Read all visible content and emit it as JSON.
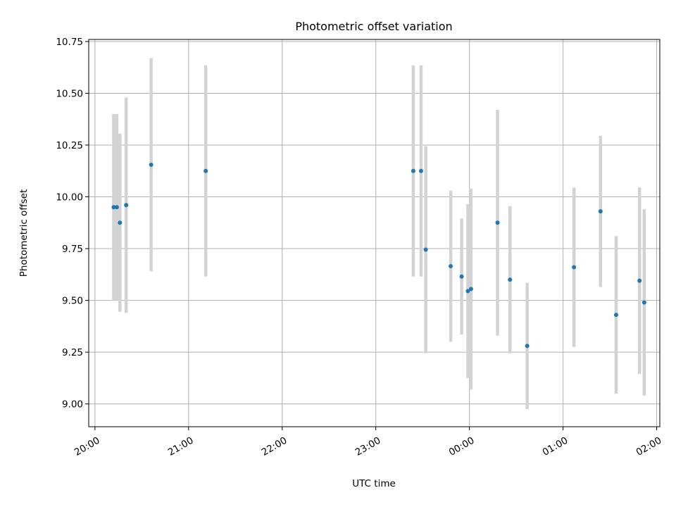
{
  "chart_data": {
    "type": "scatter",
    "title": "Photometric offset variation",
    "xlabel": "UTC time",
    "ylabel": "Photometric offset",
    "x_ticks": [
      "20:00",
      "21:00",
      "22:00",
      "23:00",
      "00:00",
      "01:00",
      "02:00"
    ],
    "y_ticks": [
      "9.00",
      "9.25",
      "9.50",
      "9.75",
      "10.00",
      "10.25",
      "10.50",
      "10.75"
    ],
    "xlim": [
      "19:56",
      "02:02"
    ],
    "ylim": [
      8.89,
      10.76
    ],
    "grid": true,
    "colors": {
      "point": "#1f77b4",
      "errorbar": "#d3d3d3",
      "grid": "#b0b0b0"
    },
    "points": [
      {
        "x": "20:12",
        "y": 9.95,
        "err": 0.45
      },
      {
        "x": "20:14",
        "y": 9.95,
        "err": 0.45
      },
      {
        "x": "20:16",
        "y": 9.875,
        "err": 0.43
      },
      {
        "x": "20:20",
        "y": 9.96,
        "err": 0.52
      },
      {
        "x": "20:36",
        "y": 10.155,
        "err": 0.515
      },
      {
        "x": "21:11",
        "y": 10.125,
        "err": 0.51
      },
      {
        "x": "23:24",
        "y": 10.125,
        "err": 0.51
      },
      {
        "x": "23:29",
        "y": 10.125,
        "err": 0.51
      },
      {
        "x": "23:32",
        "y": 9.745,
        "err": 0.5
      },
      {
        "x": "23:48",
        "y": 9.665,
        "err": 0.365
      },
      {
        "x": "23:55",
        "y": 9.615,
        "err": 0.28
      },
      {
        "x": "23:59",
        "y": 9.545,
        "err": 0.42
      },
      {
        "x": "00:01",
        "y": 9.555,
        "err": 0.485
      },
      {
        "x": "00:18",
        "y": 9.875,
        "err": 0.545
      },
      {
        "x": "00:26",
        "y": 9.6,
        "err": 0.355
      },
      {
        "x": "00:37",
        "y": 9.28,
        "err": 0.305
      },
      {
        "x": "01:07",
        "y": 9.66,
        "err": 0.385
      },
      {
        "x": "01:24",
        "y": 9.93,
        "err": 0.365
      },
      {
        "x": "01:34",
        "y": 9.43,
        "err": 0.38
      },
      {
        "x": "01:49",
        "y": 9.595,
        "err": 0.45
      },
      {
        "x": "01:52",
        "y": 9.49,
        "err": 0.45
      }
    ]
  }
}
